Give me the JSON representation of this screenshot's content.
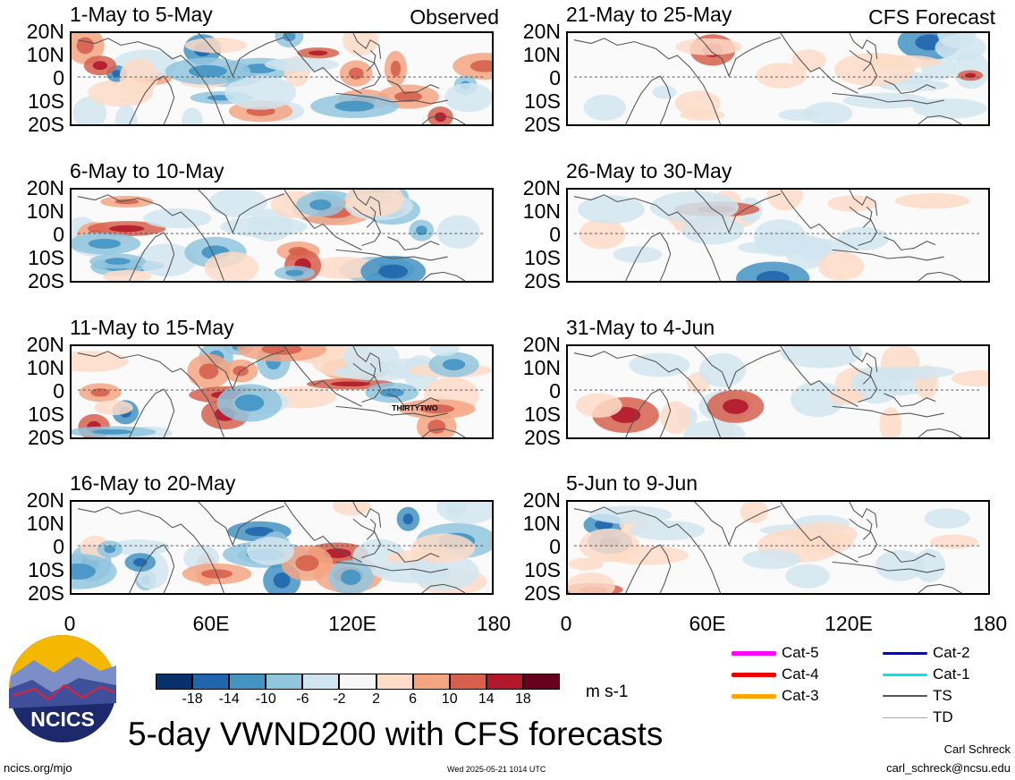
{
  "panels": [
    {
      "id": "p1",
      "title": "1-May to 5-May",
      "corner": "Observed"
    },
    {
      "id": "p2",
      "title": "6-May to 10-May",
      "corner": ""
    },
    {
      "id": "p3",
      "title": "11-May to 15-May",
      "corner": "",
      "annotation": "THIRTYTWO"
    },
    {
      "id": "p4",
      "title": "16-May to 20-May",
      "corner": ""
    },
    {
      "id": "p5",
      "title": "21-May to 25-May",
      "corner": "CFS Forecast"
    },
    {
      "id": "p6",
      "title": "26-May to 30-May",
      "corner": ""
    },
    {
      "id": "p7",
      "title": "31-May to 4-Jun",
      "corner": ""
    },
    {
      "id": "p8",
      "title": "5-Jun to 9-Jun",
      "corner": ""
    }
  ],
  "lat_labels": [
    "20N",
    "10N",
    "0",
    "10S",
    "20S"
  ],
  "lon_labels": [
    "0",
    "60E",
    "120E",
    "180"
  ],
  "colorbar": {
    "colors": [
      "#08306b",
      "#2166ac",
      "#4393c3",
      "#92c5de",
      "#d1e5f0",
      "#f7f7f7",
      "#fddbc7",
      "#f4a582",
      "#d6604d",
      "#b2182b",
      "#67001f"
    ],
    "labels": [
      "-18",
      "-14",
      "-10",
      "-6",
      "-2",
      "2",
      "6",
      "10",
      "14",
      "18"
    ],
    "units": "m s-1"
  },
  "legend": [
    {
      "label": "Cat-5",
      "color": "#ff00ff"
    },
    {
      "label": "Cat-4",
      "color": "#ee0000"
    },
    {
      "label": "Cat-3",
      "color": "#ffa500"
    },
    {
      "label": "Cat-2",
      "color": "#0000cc"
    },
    {
      "label": "Cat-1",
      "color": "#00e5ee"
    },
    {
      "label": "TS",
      "color": "#555555"
    },
    {
      "label": "TD",
      "color": "#aaaaaa"
    }
  ],
  "logo_text": "NCICS",
  "main_title": "5-day VWND200 with CFS forecasts",
  "footer": {
    "url": "ncics.org/mjo",
    "timestamp": "Wed 2025-05-21 1014 UTC",
    "author": "Carl Schreck",
    "email": "carl_schreck@ncsu.edu"
  }
}
